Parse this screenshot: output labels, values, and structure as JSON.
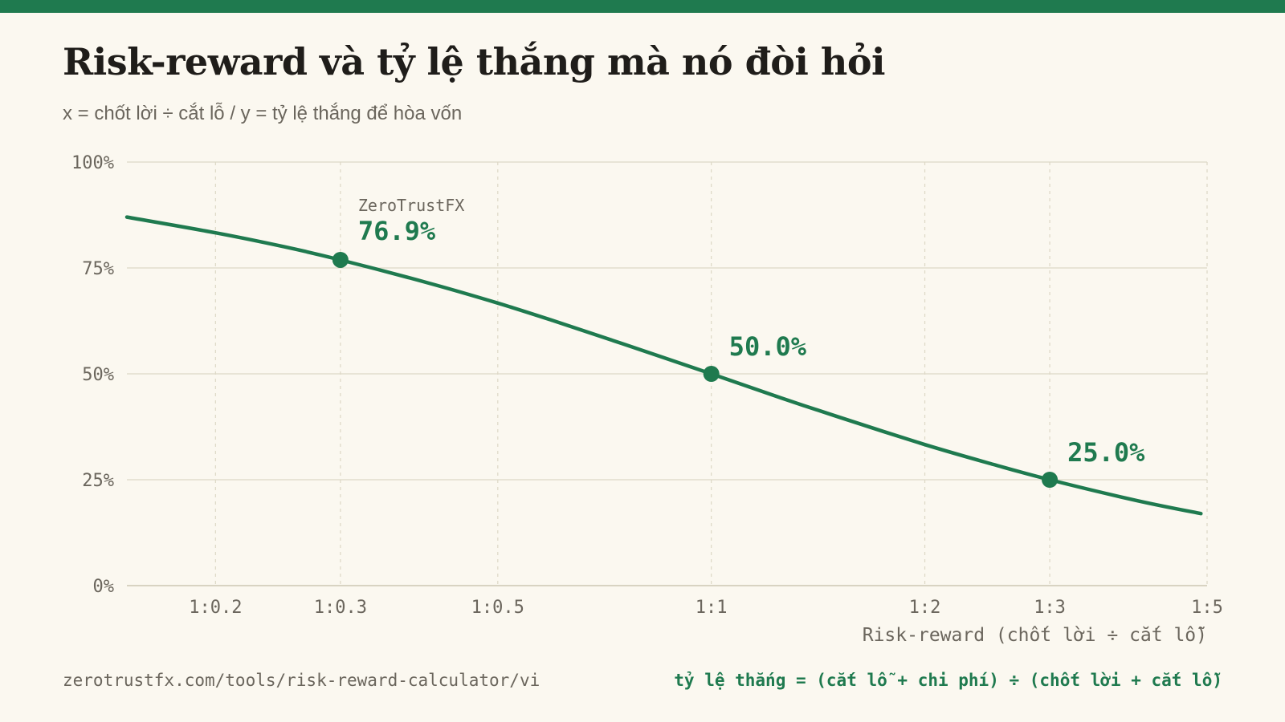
{
  "header": {
    "title": "Risk-reward và tỷ lệ thắng mà nó đòi hỏi",
    "subtitle": "x = chốt lời ÷ cắt lỗ / y = tỷ lệ thắng để hòa vốn"
  },
  "footer": {
    "url": "zerotrustfx.com/tools/risk-reward-calculator/vi",
    "formula": "tỷ lệ thắng = (cắt lỗ + chi phí) ÷ (chốt lời + cắt lỗ)"
  },
  "colors": {
    "accent": "#1f7a4f",
    "grid": "#ddd8c6",
    "muted_text": "#6b665d",
    "background": "#fbf8f0"
  },
  "chart_data": {
    "type": "line",
    "xlabel": "Risk-reward (chốt lời ÷ cắt lỗ)",
    "ylabel": "",
    "x_scale": "log",
    "x_range": [
      0.15,
      5
    ],
    "ylim": [
      0,
      100
    ],
    "y_ticks": [
      {
        "value": 0,
        "label": "0%"
      },
      {
        "value": 25,
        "label": "25%"
      },
      {
        "value": 50,
        "label": "50%"
      },
      {
        "value": 75,
        "label": "75%"
      },
      {
        "value": 100,
        "label": "100%"
      }
    ],
    "x_ticks": [
      {
        "value": 0.2,
        "label": "1:0.2"
      },
      {
        "value": 0.3,
        "label": "1:0.3"
      },
      {
        "value": 0.5,
        "label": "1:0.5"
      },
      {
        "value": 1,
        "label": "1:1"
      },
      {
        "value": 2,
        "label": "1:2"
      },
      {
        "value": 3,
        "label": "1:3"
      },
      {
        "value": 5,
        "label": "1:5"
      }
    ],
    "grid": "dashed vertical, solid horizontal",
    "series": [
      {
        "formula": "100 / (1 + x)",
        "x": [
          0.15,
          0.2,
          0.25,
          0.3,
          0.4,
          0.5,
          0.6,
          0.75,
          1,
          1.25,
          1.5,
          2,
          2.5,
          3,
          4,
          4.9
        ],
        "y": [
          87.0,
          83.3,
          80.0,
          76.9,
          71.4,
          66.7,
          62.5,
          57.1,
          50.0,
          44.4,
          40.0,
          33.3,
          28.6,
          25.0,
          20.0,
          17.0
        ]
      }
    ],
    "highlights": [
      {
        "x": 0.3,
        "y": 76.9,
        "label": "76.9%",
        "caption": "ZeroTrustFX"
      },
      {
        "x": 1,
        "y": 50.0,
        "label": "50.0%",
        "caption": ""
      },
      {
        "x": 3,
        "y": 25.0,
        "label": "25.0%",
        "caption": ""
      }
    ]
  }
}
